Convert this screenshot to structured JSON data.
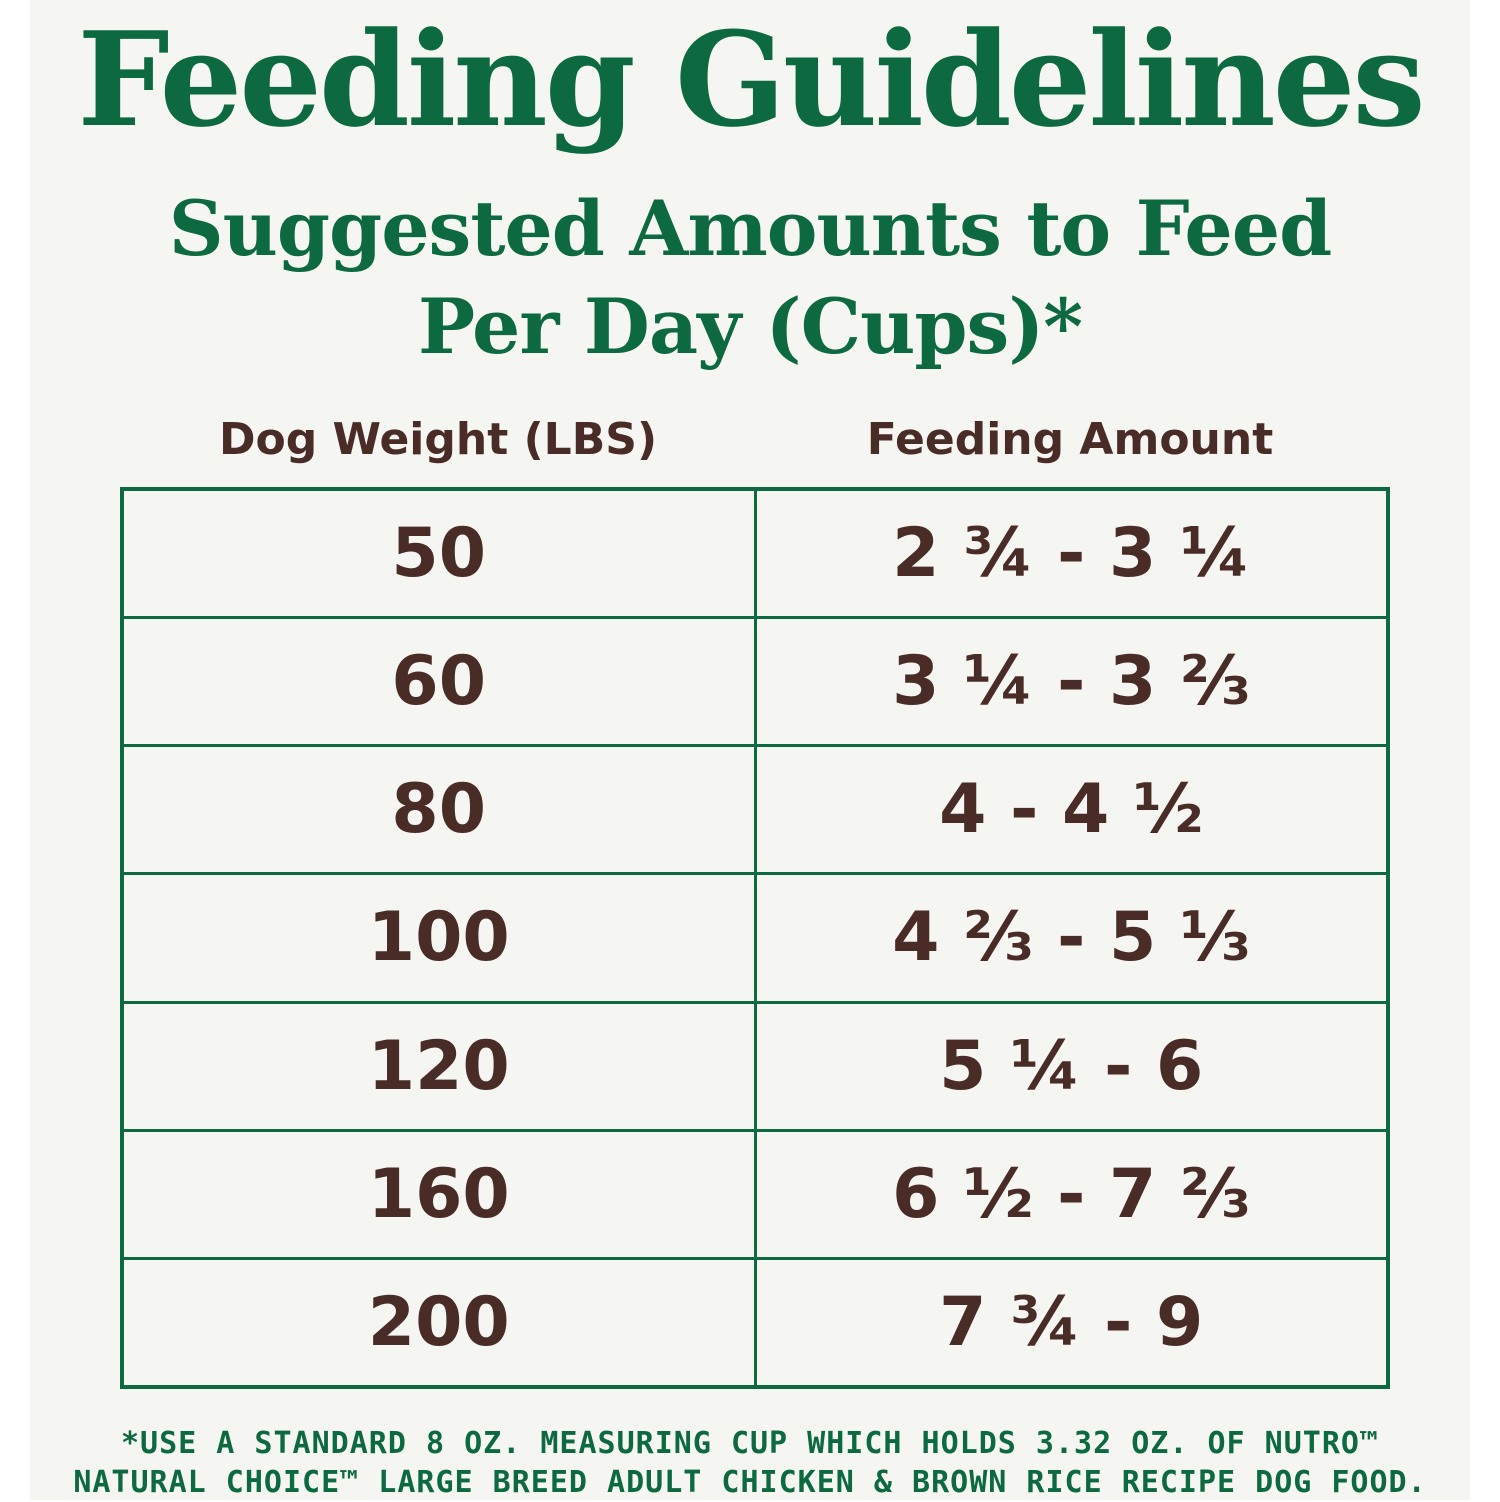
{
  "title": "Feeding Guidelines",
  "subtitle": {
    "line1": "Suggested Amounts to Feed",
    "line2": "Per Day (Cups)*"
  },
  "table": {
    "headers": [
      "Dog Weight (LBS)",
      "Feeding Amount"
    ],
    "rows": [
      {
        "weight": "50",
        "amount": "2 ¾ - 3 ¼"
      },
      {
        "weight": "60",
        "amount": "3 ¼ - 3 ⅔"
      },
      {
        "weight": "80",
        "amount": "4 - 4 ½"
      },
      {
        "weight": "100",
        "amount": "4 ⅔ - 5 ⅓"
      },
      {
        "weight": "120",
        "amount": "5 ¼ - 6"
      },
      {
        "weight": "160",
        "amount": "6 ½ - 7 ⅔"
      },
      {
        "weight": "200",
        "amount": "7 ¾ - 9"
      }
    ]
  },
  "footnote": {
    "line1": "*USE A STANDARD 8 OZ. MEASURING CUP WHICH HOLDS 3.32 OZ. OF NUTRO™",
    "line2": "NATURAL CHOICE™ LARGE BREED ADULT CHICKEN & BROWN RICE RECIPE DOG FOOD."
  },
  "colors": {
    "green": "#0d6a40",
    "brown": "#4a2c27",
    "background": "#f5f5f1"
  }
}
